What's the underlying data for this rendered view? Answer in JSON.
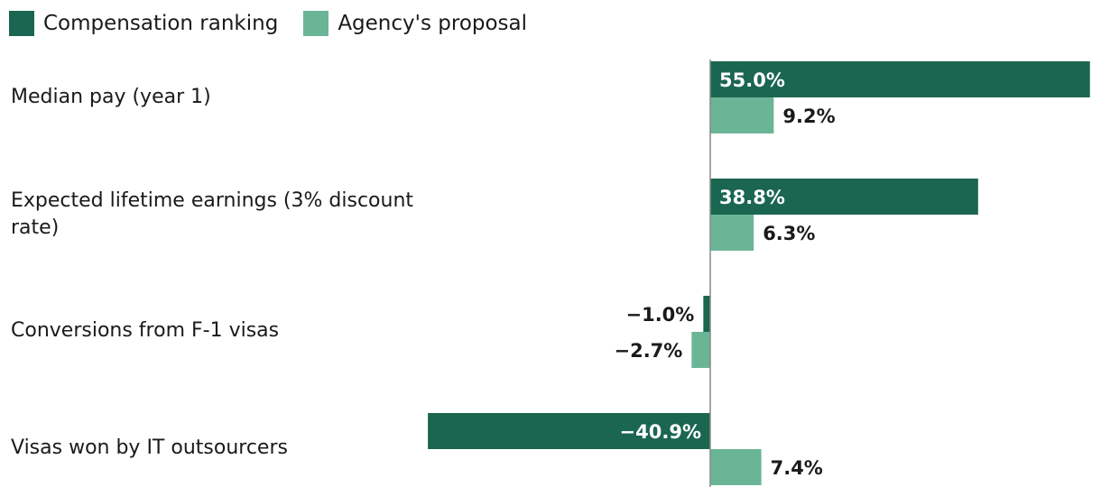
{
  "colors": {
    "dark": "#1a6650",
    "light": "#6bb597",
    "axis": "#888888",
    "text": "#1a1a1a",
    "inside_text": "#ffffff"
  },
  "chart_data": {
    "type": "bar",
    "orientation": "horizontal",
    "title": "",
    "categories": [
      "Median pay (year 1)",
      "Expected lifetime earnings (3% discount rate)",
      "Conversions from F-1 visas",
      "Visas won by IT outsourcers"
    ],
    "series": [
      {
        "name": "Compensation ranking",
        "values": [
          55.0,
          38.8,
          -1.0,
          -40.9
        ],
        "labels": [
          "55.0%",
          "38.8%",
          "−1.0%",
          "−40.9%"
        ]
      },
      {
        "name": "Agency's proposal",
        "values": [
          9.2,
          6.3,
          -2.7,
          7.4
        ],
        "labels": [
          "9.2%",
          "6.3%",
          "−2.7%",
          "7.4%"
        ]
      }
    ],
    "xlim": [
      -40.9,
      55.0
    ],
    "grid": false,
    "legend_position": "top-left"
  }
}
